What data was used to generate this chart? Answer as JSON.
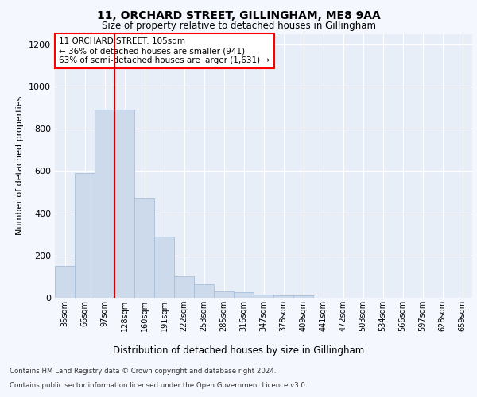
{
  "title1": "11, ORCHARD STREET, GILLINGHAM, ME8 9AA",
  "title2": "Size of property relative to detached houses in Gillingham",
  "xlabel": "Distribution of detached houses by size in Gillingham",
  "ylabel": "Number of detached properties",
  "categories": [
    "35sqm",
    "66sqm",
    "97sqm",
    "128sqm",
    "160sqm",
    "191sqm",
    "222sqm",
    "253sqm",
    "285sqm",
    "316sqm",
    "347sqm",
    "378sqm",
    "409sqm",
    "441sqm",
    "472sqm",
    "503sqm",
    "534sqm",
    "566sqm",
    "597sqm",
    "628sqm",
    "659sqm"
  ],
  "values": [
    150,
    590,
    890,
    890,
    470,
    290,
    103,
    65,
    30,
    25,
    15,
    10,
    10,
    0,
    0,
    0,
    0,
    0,
    0,
    0,
    0
  ],
  "bar_color": "#ccdaec",
  "bar_edge_color": "#a8bfd8",
  "highlight_color": "#cc0000",
  "red_line_bar_index": 2,
  "annotation_title": "11 ORCHARD STREET: 105sqm",
  "annotation_line1": "← 36% of detached houses are smaller (941)",
  "annotation_line2": "63% of semi-detached houses are larger (1,631) →",
  "ylim": [
    0,
    1250
  ],
  "yticks": [
    0,
    200,
    400,
    600,
    800,
    1000,
    1200
  ],
  "footer1": "Contains HM Land Registry data © Crown copyright and database right 2024.",
  "footer2": "Contains public sector information licensed under the Open Government Licence v3.0.",
  "fig_bg_color": "#f5f7ff",
  "plot_bg_color": "#e8eef8"
}
